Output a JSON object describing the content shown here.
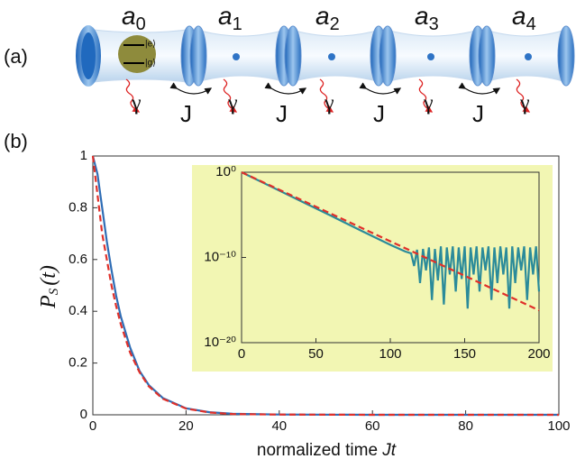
{
  "diagram": {
    "panel_a": "(a)",
    "panel_b": "(b)",
    "modes": [
      {
        "name": "a",
        "index": "0"
      },
      {
        "name": "a",
        "index": "1"
      },
      {
        "name": "a",
        "index": "2"
      },
      {
        "name": "a",
        "index": "3"
      },
      {
        "name": "a",
        "index": "4"
      }
    ],
    "levels": [
      "|e⟩",
      "|g⟩"
    ],
    "losses": [
      "γ",
      "γ",
      "γ",
      "γ",
      "γ"
    ],
    "couplings": [
      "J",
      "J",
      "J",
      "J"
    ]
  },
  "chart_data": [
    {
      "type": "line",
      "xlabel": [
        "normalized time ",
        "Jt"
      ],
      "ylabel": [
        "P",
        "S",
        "(t)"
      ],
      "xlim": [
        0,
        100
      ],
      "ylim": [
        0,
        1
      ],
      "xticks": [
        0,
        20,
        40,
        60,
        80,
        100
      ],
      "yticks": [
        0,
        0.2,
        0.4,
        0.6,
        0.8,
        1
      ],
      "series": [
        {
          "color": "#2f6db5",
          "dash": false,
          "x": [
            0,
            1,
            2,
            3,
            4,
            5,
            6,
            8,
            10,
            12,
            15,
            20,
            25,
            30,
            40,
            60,
            80,
            100
          ],
          "values": [
            1,
            0.93,
            0.8,
            0.67,
            0.56,
            0.46,
            0.38,
            0.26,
            0.17,
            0.115,
            0.065,
            0.025,
            0.01,
            0.004,
            0.001,
            0,
            0,
            0
          ]
        },
        {
          "color": "#e0302a",
          "dash": true,
          "x": [
            0,
            1,
            2,
            3,
            4,
            5,
            6,
            8,
            10,
            12,
            15,
            20,
            25,
            30,
            40,
            60,
            80,
            100
          ],
          "values": [
            1,
            0.85,
            0.7,
            0.6,
            0.5,
            0.42,
            0.35,
            0.24,
            0.165,
            0.11,
            0.062,
            0.024,
            0.009,
            0.003,
            0.001,
            0,
            0,
            0
          ]
        }
      ]
    },
    {
      "type": "line",
      "log_y": true,
      "background": "#f2f6b3",
      "xlim": [
        0,
        200
      ],
      "ylim": [
        1e-20,
        1
      ],
      "xticks": [
        0,
        50,
        100,
        150,
        200
      ],
      "yticks": [
        {
          "value": 1,
          "label": "10⁰"
        },
        {
          "value": 1e-10,
          "label": "10⁻¹⁰"
        },
        {
          "value": 1e-20,
          "label": "10⁻²⁰"
        }
      ],
      "series": [
        {
          "color": "#2b8b9a",
          "dash": false,
          "x": [
            0,
            20,
            40,
            60,
            80,
            100,
            110,
            114,
            116,
            118,
            120,
            122,
            124,
            126,
            128,
            130,
            132,
            134,
            136,
            138,
            140,
            142,
            144,
            146,
            148,
            150,
            152,
            154,
            156,
            158,
            160,
            162,
            164,
            166,
            168,
            170,
            172,
            174,
            176,
            178,
            180,
            182,
            184,
            186,
            188,
            190,
            192,
            194,
            196,
            198,
            200
          ],
          "values": [
            1,
            0.02,
            0.0004,
            8e-06,
            1.5e-07,
            3e-09,
            5e-10,
            3e-10,
            1e-11,
            8e-10,
            1e-13,
            1e-09,
            3e-12,
            1.5e-09,
            1e-15,
            1e-09,
            2e-13,
            2e-09,
            3e-16,
            1.5e-09,
            1e-12,
            2e-09,
            1e-14,
            1.5e-09,
            3e-13,
            2e-09,
            1e-16,
            1.5e-09,
            1e-12,
            2e-09,
            1e-14,
            1.5e-09,
            3e-12,
            2e-09,
            1e-15,
            1.5e-09,
            1e-13,
            2e-09,
            1e-12,
            1.5e-09,
            1e-16,
            2e-09,
            1e-13,
            1.5e-09,
            3e-12,
            2e-09,
            1e-15,
            1.5e-09,
            1e-12,
            2e-09,
            1e-14
          ]
        },
        {
          "color": "#e0302a",
          "dash": true,
          "x": [
            0,
            20,
            40,
            60,
            80,
            100,
            120,
            140,
            160,
            180,
            200
          ],
          "values": [
            1,
            0.024,
            0.00058,
            1.4e-05,
            3.3e-07,
            7.9e-09,
            1.9e-10,
            4.6e-12,
            1.1e-13,
            2.6e-15,
            6.3e-17
          ]
        }
      ]
    }
  ]
}
